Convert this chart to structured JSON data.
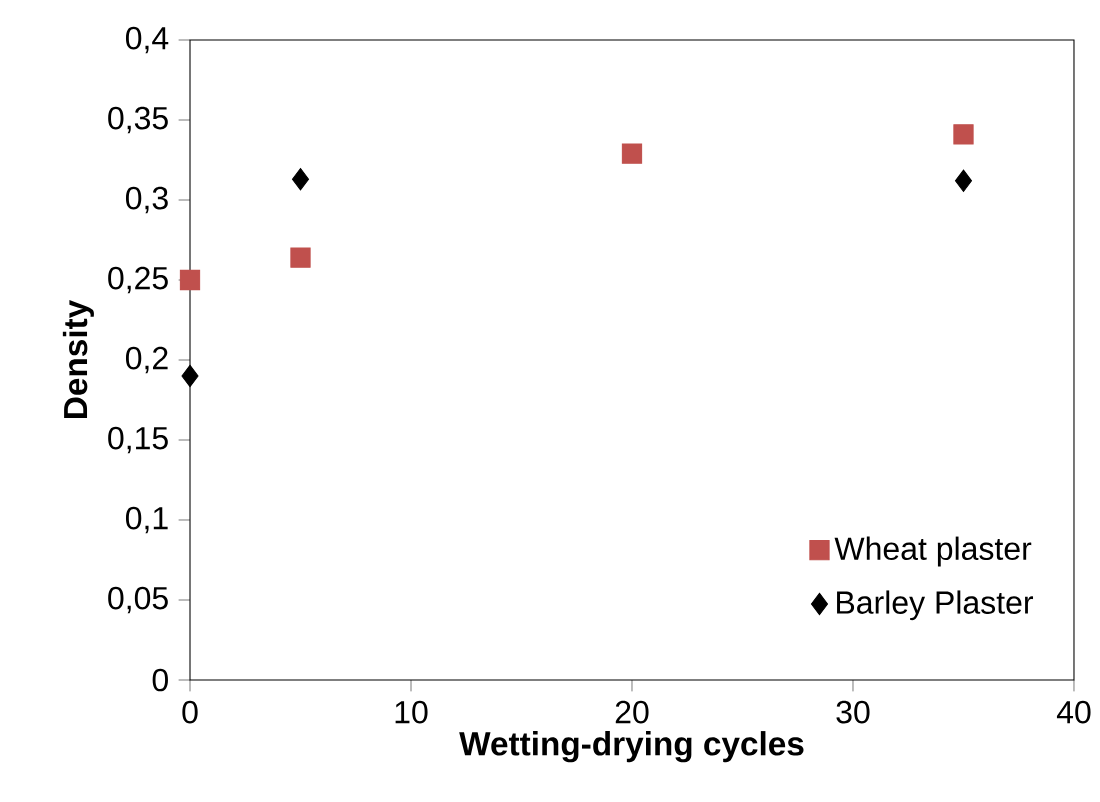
{
  "chart_data": {
    "type": "scatter",
    "xlabel": "Wetting-drying cycles",
    "ylabel": "Density",
    "xlim": [
      0,
      40
    ],
    "xticks": [
      0,
      10,
      20,
      30,
      40
    ],
    "ylim": [
      0,
      0.4
    ],
    "yticks": [
      0,
      {
        "value": 0.05,
        "label": "0,05"
      },
      {
        "value": 0.1,
        "label": "0,1"
      },
      {
        "value": 0.15,
        "label": "0,15"
      },
      {
        "value": 0.2,
        "label": "0,2"
      },
      {
        "value": 0.25,
        "label": "0,25"
      },
      {
        "value": 0.3,
        "label": "0,3"
      },
      {
        "value": 0.35,
        "label": "0,35"
      },
      {
        "value": 0.4,
        "label": "0,4"
      }
    ],
    "series": [
      {
        "name": "Wheat plaster",
        "color": "#c0504d",
        "marker": "square",
        "x": [
          0,
          5,
          20,
          35
        ],
        "values": [
          0.25,
          0.264,
          0.329,
          0.341
        ]
      },
      {
        "name": "Barley Plaster",
        "color": "#000000",
        "marker": "diamond",
        "x": [
          0,
          5,
          35
        ],
        "values": [
          0.19,
          0.313,
          0.312
        ]
      }
    ],
    "grid": false,
    "legend": "bottom right"
  }
}
